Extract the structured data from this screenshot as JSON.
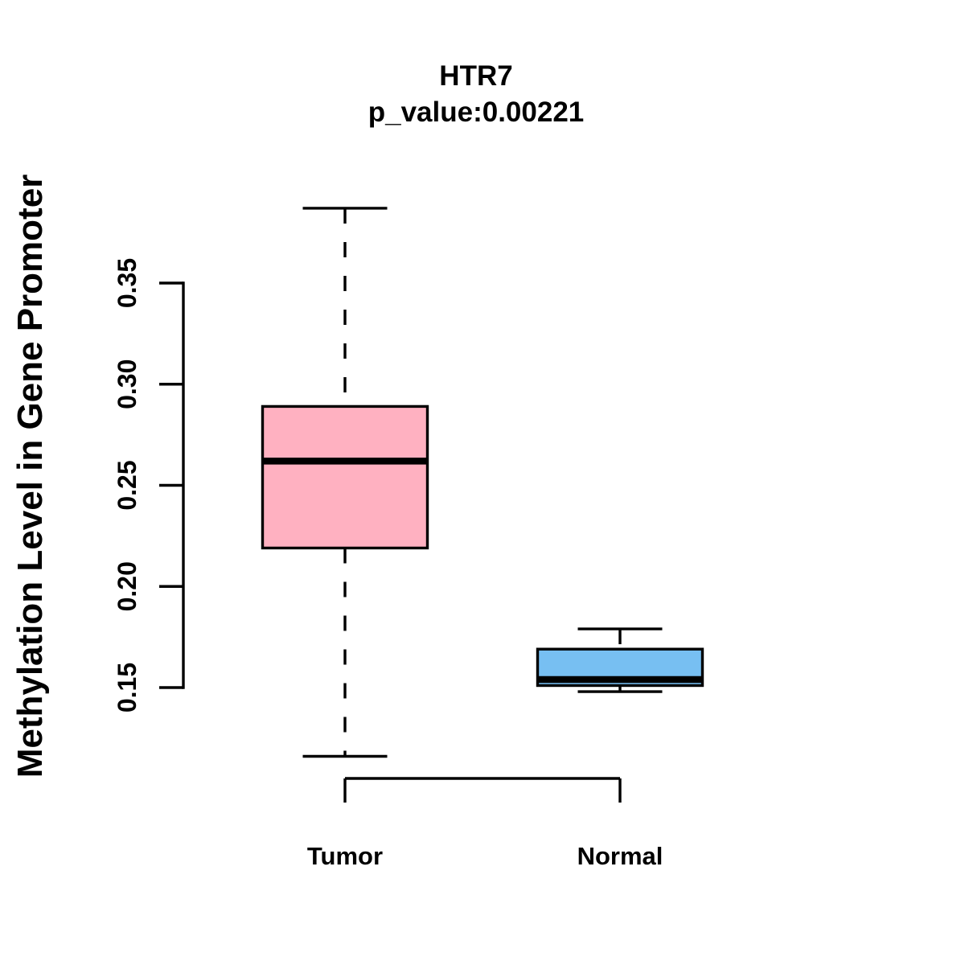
{
  "chart_data": {
    "type": "box",
    "title": "HTR7",
    "subtitle": "p_value:0.00221",
    "ylabel": "Methylation Level in Gene Promoter",
    "xlabel": "",
    "categories": [
      "Tumor",
      "Normal"
    ],
    "y_ticks": [
      0.15,
      0.2,
      0.25,
      0.3,
      0.35
    ],
    "y_tick_labels": [
      "0.15",
      "0.20",
      "0.25",
      "0.30",
      "0.35"
    ],
    "axis_range": [
      0.15,
      0.35
    ],
    "data_range": [
      0.116,
      0.387
    ],
    "grid": false,
    "legend": "none",
    "series": [
      {
        "name": "Tumor",
        "color": "#FFB1C1",
        "stats": {
          "min": 0.116,
          "q1": 0.219,
          "median": 0.262,
          "q3": 0.289,
          "max": 0.387
        }
      },
      {
        "name": "Normal",
        "color": "#77BFF2",
        "stats": {
          "min": 0.148,
          "q1": 0.151,
          "median": 0.154,
          "q3": 0.169,
          "max": 0.179
        }
      }
    ],
    "colors": {
      "stroke": "#000000",
      "background": "#FFFFFF",
      "text": "#000000"
    }
  }
}
